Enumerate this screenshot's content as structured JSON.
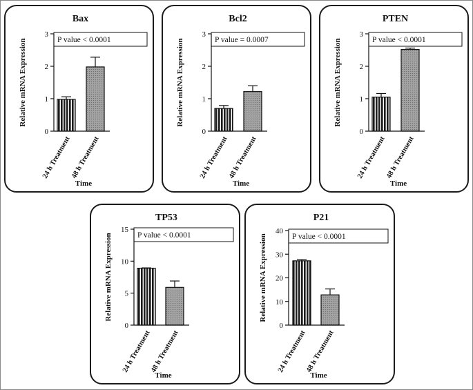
{
  "figure": {
    "x_axis_label": "Time",
    "y_axis_label": "Relative mRNA Expression"
  },
  "colors": {
    "bar_24h": "#1c1c1c",
    "bar_48h": "#a3a3a3",
    "frame": "#1a1a1a",
    "background": "#ffffff"
  },
  "chart_data": [
    {
      "type": "bar",
      "title": "Bax",
      "annotation": "P value < 0.0001",
      "xlabel": "Time",
      "ylabel": "Relative mRNA Expression",
      "categories": [
        "24 h Treatment",
        "48 h Treatment"
      ],
      "values": [
        0.98,
        1.98
      ],
      "errors": [
        0.08,
        0.3
      ],
      "ylim": [
        0,
        3
      ],
      "yticks": [
        "0",
        "1",
        "2",
        "3"
      ],
      "ytick_values": [
        0,
        1,
        2,
        3
      ]
    },
    {
      "type": "bar",
      "title": "Bcl2",
      "annotation": "P value = 0.0007",
      "xlabel": "Time",
      "ylabel": "Relative mRNA Expression",
      "categories": [
        "24 h Treatment",
        "48 h Treatment"
      ],
      "values": [
        0.7,
        1.22
      ],
      "errors": [
        0.09,
        0.18
      ],
      "ylim": [
        0,
        3
      ],
      "yticks": [
        "0",
        "1",
        "2",
        "3"
      ],
      "ytick_values": [
        0,
        1,
        2,
        3
      ]
    },
    {
      "type": "bar",
      "title": "PTEN",
      "annotation": "P value < 0.0001",
      "xlabel": "Time",
      "ylabel": "Relative mRNA Expression",
      "categories": [
        "24 h Treatment",
        "48 h Treatment"
      ],
      "values": [
        1.05,
        2.52
      ],
      "errors": [
        0.11,
        0.04
      ],
      "ylim": [
        0,
        3
      ],
      "yticks": [
        "0",
        "1",
        "2",
        "3"
      ],
      "ytick_values": [
        0,
        1,
        2,
        3
      ]
    },
    {
      "type": "bar",
      "title": "TP53",
      "annotation": "P value < 0.0001",
      "xlabel": "Time",
      "ylabel": "Relative mRNA Expression",
      "categories": [
        "24 h Treatment",
        "48 h Treatment"
      ],
      "values": [
        8.9,
        5.9
      ],
      "errors": [
        0.05,
        1.0
      ],
      "ylim": [
        0,
        15
      ],
      "yticks": [
        "0",
        "5",
        "10",
        "15"
      ],
      "ytick_values": [
        0,
        5,
        10,
        15
      ]
    },
    {
      "type": "bar",
      "title": "P21",
      "annotation": "P value < 0.0001",
      "xlabel": "Time",
      "ylabel": "Relative mRNA Expression",
      "categories": [
        "24 h Treatment",
        "48 h Treatment"
      ],
      "values": [
        27.2,
        12.8
      ],
      "errors": [
        0.5,
        2.5
      ],
      "ylim": [
        0,
        40
      ],
      "yticks": [
        "0",
        "10",
        "20",
        "30",
        "40"
      ],
      "ytick_values": [
        0,
        10,
        20,
        30,
        40
      ]
    }
  ]
}
